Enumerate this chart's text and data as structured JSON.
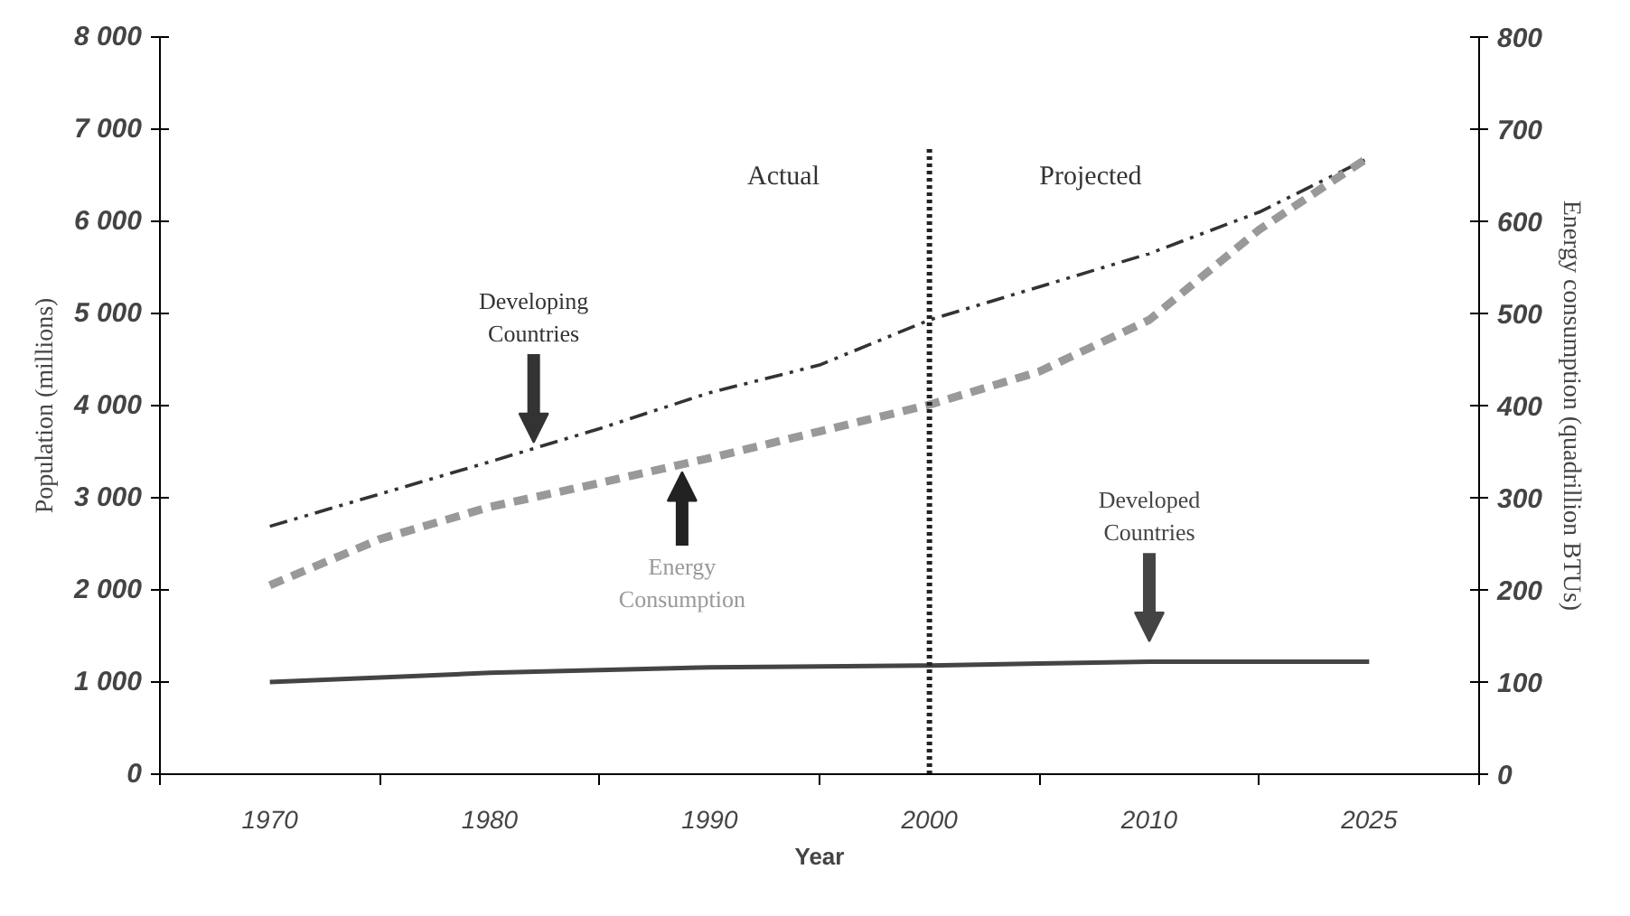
{
  "chart_data": {
    "type": "line",
    "xlabel": "Year",
    "ylabel": "Population (millions)",
    "y2label": "Energy consumption (quadrillion BTUs)",
    "categories": [
      "1970",
      null,
      "1980",
      null,
      "1990",
      null,
      "2000",
      null,
      "2010",
      null,
      "2025"
    ],
    "series": [
      {
        "name": "Developing Countries",
        "color": "#333333",
        "line_style": "dashdot",
        "values": [
          2690,
          3040,
          3390,
          3750,
          4140,
          4440,
          4930,
          5290,
          5650,
          6100,
          6690
        ]
      },
      {
        "name": "Energy Consumption",
        "color": "#999999",
        "line_style": "dashed",
        "axis": "y2",
        "values": [
          205,
          255,
          290,
          316,
          343,
          372,
          401,
          437,
          493,
          591,
          670
        ]
      },
      {
        "name": "Developed Countries",
        "color": "#444444",
        "line_style": "solid",
        "values": [
          1000,
          1050,
          1100,
          1130,
          1160,
          1170,
          1180,
          1200,
          1220,
          1220,
          1220
        ]
      }
    ],
    "ylim": [
      0,
      8000
    ],
    "yticks": [
      {
        "value": 0,
        "label": "0"
      },
      {
        "value": 1000,
        "label": "1 000"
      },
      {
        "value": 2000,
        "label": "2 000"
      },
      {
        "value": 3000,
        "label": "3 000"
      },
      {
        "value": 4000,
        "label": "4 000"
      },
      {
        "value": 5000,
        "label": "5 000"
      },
      {
        "value": 6000,
        "label": "6 000"
      },
      {
        "value": 7000,
        "label": "7 000"
      },
      {
        "value": 8000,
        "label": "8 000"
      }
    ],
    "y2lim": [
      0,
      800
    ],
    "y2ticks": [
      0,
      100,
      200,
      300,
      400,
      500,
      600,
      700,
      800
    ],
    "ref_lines": [
      {
        "axis": "x",
        "value": "2000",
        "color": "#222222",
        "line_style": "dotted"
      }
    ],
    "annotations": [
      "Actual",
      "Projected"
    ],
    "grid": false
  }
}
